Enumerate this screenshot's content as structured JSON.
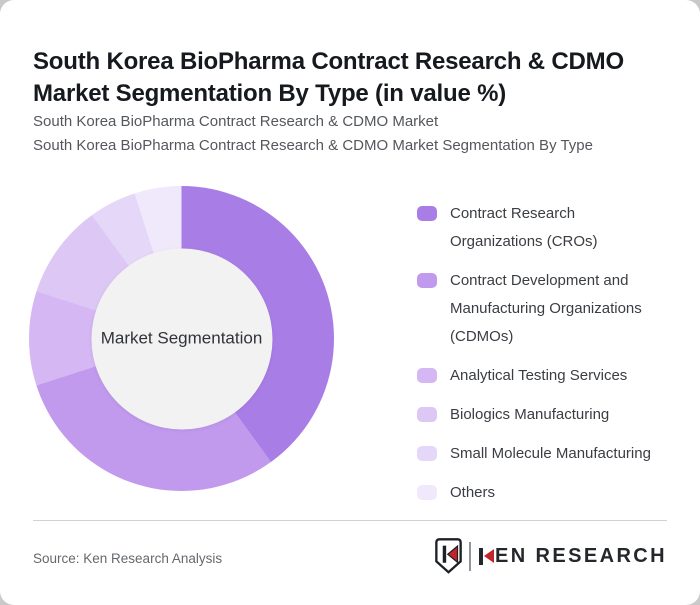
{
  "page": {
    "background": "#c9c9c9",
    "card_background": "#ffffff"
  },
  "header": {
    "title": "South Korea BioPharma Contract Research & CDMO Market Segmentation By Type (in value %)",
    "subtitle_line1": "South Korea BioPharma Contract Research & CDMO Market",
    "subtitle_line2": "South Korea BioPharma Contract Research & CDMO Market Segmentation By Type"
  },
  "chart_data": {
    "type": "pie",
    "donut": true,
    "title": "South Korea BioPharma Contract Research & CDMO Market Segmentation By Type (in value %)",
    "center_label": "Market Segmentation",
    "legend_position": "right",
    "categories": [
      "Contract Research Organizations (CROs)",
      "Contract Development and Manufacturing Organizations (CDMOs)",
      "Analytical Testing Services",
      "Biologics Manufacturing",
      "Small Molecule Manufacturing",
      "Others"
    ],
    "values": [
      40,
      30,
      10,
      10,
      5,
      5
    ],
    "colors": [
      "#a97de6",
      "#c19aee",
      "#d5b7f3",
      "#dcc7f5",
      "#e5d7f8",
      "#f0e9fb"
    ],
    "hole_color": "#f2f2f3",
    "start_angle_deg": 0
  },
  "footer": {
    "source": "Source: Ken Research Analysis",
    "logo": {
      "badge_letter": "K",
      "brand": "KEN RESEARCH",
      "accent_color": "#c5232b",
      "text_color": "#24282c"
    }
  }
}
